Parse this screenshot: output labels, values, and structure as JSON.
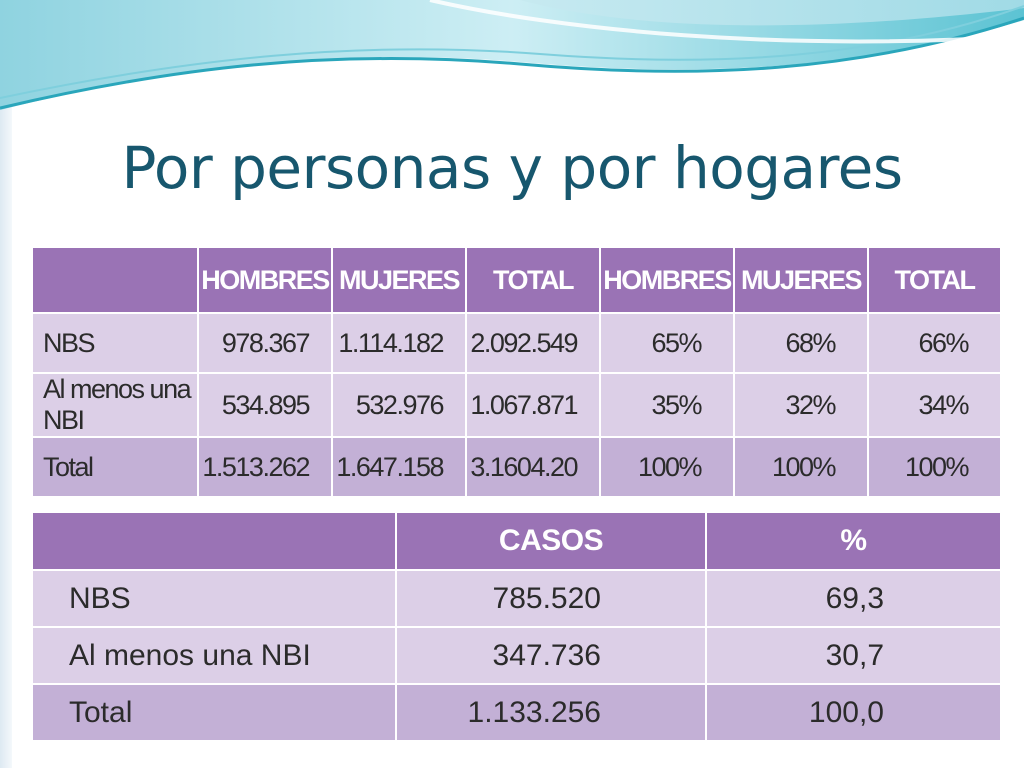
{
  "slide": {
    "title": "Por personas y por hogares"
  },
  "table_personas": {
    "headers": [
      "",
      "HOMBRES",
      "MUJERES",
      "TOTAL",
      "HOMBRES",
      "MUJERES",
      "TOTAL"
    ],
    "rows": [
      [
        "NBS",
        "978.367",
        "1.114.182",
        "2.092.549",
        "65%",
        "68%",
        "66%"
      ],
      [
        "Al menos una NBI",
        "534.895",
        "532.976",
        "1.067.871",
        "35%",
        "32%",
        "34%"
      ],
      [
        "Total",
        "1.513.262",
        "1.647.158",
        "3.1604.20",
        "100%",
        "100%",
        "100%"
      ]
    ]
  },
  "table_hogares": {
    "headers": [
      "",
      "CASOS",
      "%"
    ],
    "rows": [
      [
        "NBS",
        "785.520",
        "69,3"
      ],
      [
        "Al menos una NBI",
        "347.736",
        "30,7"
      ],
      [
        "Total",
        "1.133.256",
        "100,0"
      ]
    ]
  },
  "colors": {
    "title": "#17576e",
    "header_bg": "#9a73b5",
    "row_light": "#dccfe7",
    "row_dark": "#c3b0d6",
    "wave_teal": "#3fb7c9",
    "wave_light": "#bfe6ee"
  }
}
